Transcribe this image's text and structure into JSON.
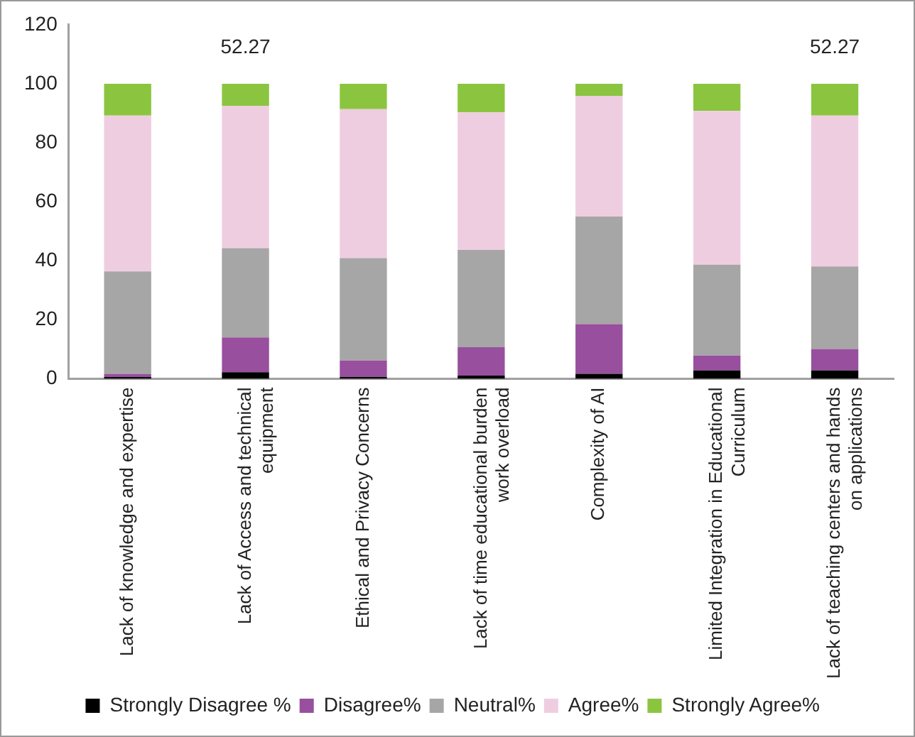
{
  "chart_data": {
    "type": "bar",
    "stacked": true,
    "categories": [
      "Lack of knowledge and expertise",
      "Lack of Access and technical equipment",
      "Ethical and Privacy Concerns",
      "Lack of time educational burden work overload",
      "Complexity of AI",
      "Limited Integration in Educational Curriculum",
      "Lack of teaching centers and hands on applications"
    ],
    "series": [
      {
        "name": "Strongly Disagree %",
        "color": "#000000",
        "values": [
          0.6,
          2.2,
          0.6,
          1.1,
          1.7,
          2.8,
          2.8
        ]
      },
      {
        "name": "Disagree%",
        "color": "#984f9e",
        "values": [
          1.1,
          11.8,
          5.6,
          9.6,
          16.8,
          5.1,
          7.3
        ]
      },
      {
        "name": "Neutral%",
        "color": "#a6a6a6",
        "values": [
          34.7,
          30.3,
          34.7,
          33.0,
          36.5,
          30.8,
          28.0
        ]
      },
      {
        "name": "Agree%",
        "color": "#efcde1",
        "values": [
          52.8,
          48.2,
          50.5,
          46.6,
          40.9,
          52.1,
          51.1
        ]
      },
      {
        "name": "Strongly Agree%",
        "color": "#8bc53f",
        "values": [
          10.8,
          7.5,
          8.6,
          9.7,
          4.1,
          9.2,
          10.8
        ]
      }
    ],
    "ylim": [
      0,
      120
    ],
    "yticks": [
      0,
      20,
      40,
      60,
      80,
      100,
      120
    ],
    "grid": false,
    "legend": "bottom",
    "annotations": [
      "52.27",
      "52.27"
    ]
  }
}
